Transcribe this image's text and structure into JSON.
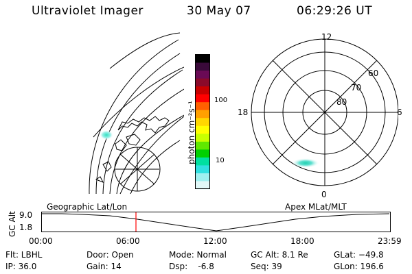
{
  "header": {
    "instrument": "Ultraviolet Imager",
    "date": "30 May 07",
    "time": "06:29:26 UT"
  },
  "colorbar": {
    "unit_label": "photon cm⁻²s⁻¹",
    "ticks": [
      "100",
      "10"
    ],
    "colors": [
      "#000000",
      "#3a0a3a",
      "#6a0a55",
      "#8a0a2a",
      "#c80000",
      "#ff0000",
      "#ff6000",
      "#ffa000",
      "#ffd700",
      "#ffff00",
      "#c8ff00",
      "#60e800",
      "#00d000",
      "#00e0a0",
      "#30e0e0",
      "#a0f0f0",
      "#e0f8f8"
    ]
  },
  "polar_plot": {
    "mlt_labels": {
      "top": "12",
      "right": "6",
      "bottom": "0",
      "left": "18"
    },
    "lat_labels": [
      "60",
      "70",
      "80"
    ]
  },
  "timeline": {
    "y_axis_label": "GC Alt",
    "y_ticks": [
      "9.0",
      "1.8"
    ],
    "left_title": "Geographic Lat/Lon",
    "right_title": "Apex MLat/MLT",
    "x_ticks": [
      "00:00",
      "06:00",
      "12:00",
      "18:00",
      "23:59"
    ],
    "marker_color": "#ff0000"
  },
  "info": {
    "filter": "Flt: LBHL",
    "ip": "IP: 36.0",
    "door": "Door: Open",
    "gain": "Gain: 14",
    "mode": "Mode: Normal",
    "dsp": "Dsp:    -6.8",
    "gc_alt": "GC Alt: 8.1 Re",
    "seq": "Seq: 39",
    "glat": "GLat: −49.8",
    "glon": "GLon: 196.6"
  }
}
